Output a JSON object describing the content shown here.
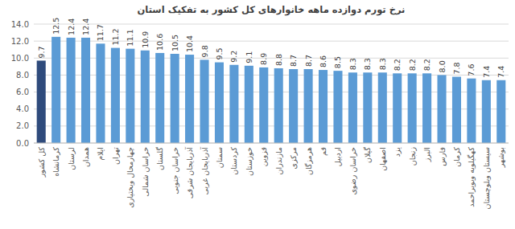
{
  "chart_data": {
    "type": "bar",
    "title": "نرخ تورم دوازده ماهه خانوارهای کل کشور به تفکیک استان",
    "categories": [
      "کل کشور",
      "کرمانشاه",
      "لرستان",
      "همدان",
      "ایلام",
      "تهران",
      "چهارمحال وبختیاری",
      "خراسان شمالی",
      "گلستان",
      "خراسان جنوبی",
      "آذربایجان شرقی",
      "آذربایجان غربی",
      "سمنان",
      "کردستان",
      "خوزستان",
      "قزوین",
      "مازندران",
      "مرکزی",
      "هرمزگان",
      "قم",
      "اردبیل",
      "خراسان رضوی",
      "گیلان",
      "اصفهان",
      "یزد",
      "زنجان",
      "البرز",
      "فارس",
      "کرمان",
      "کهگیلویه وبویراحمد",
      "سیستان وبلوچستان",
      "بوشهر"
    ],
    "values": [
      9.7,
      12.5,
      12.4,
      12.4,
      11.7,
      11.2,
      11.1,
      10.9,
      10.6,
      10.5,
      10.4,
      9.8,
      9.5,
      9.2,
      9.1,
      8.9,
      8.8,
      8.7,
      8.7,
      8.6,
      8.5,
      8.3,
      8.3,
      8.3,
      8.2,
      8.2,
      8.2,
      8.0,
      7.8,
      7.6,
      7.4,
      7.4
    ],
    "value_labels": [
      "9.7",
      "12.5",
      "12.4",
      "12.4",
      "11.7",
      "11.2",
      "11.1",
      "10.9",
      "10.6",
      "10.5",
      "10.4",
      "9.8",
      "9.5",
      "9.2",
      "9.1",
      "8.9",
      "8.8",
      "8.7",
      "8.7",
      "8.6",
      "8.5",
      "8.3",
      "8.3",
      "8.3",
      "8.2",
      "8.2",
      "8.2",
      "8.0",
      "7.8",
      "7.6",
      "7.4",
      "7.4"
    ],
    "colors": [
      "#2f4b7c",
      "#5b9bd5",
      "#5b9bd5",
      "#5b9bd5",
      "#5b9bd5",
      "#5b9bd5",
      "#5b9bd5",
      "#5b9bd5",
      "#5b9bd5",
      "#5b9bd5",
      "#5b9bd5",
      "#5b9bd5",
      "#5b9bd5",
      "#5b9bd5",
      "#5b9bd5",
      "#5b9bd5",
      "#5b9bd5",
      "#5b9bd5",
      "#5b9bd5",
      "#5b9bd5",
      "#5b9bd5",
      "#5b9bd5",
      "#5b9bd5",
      "#5b9bd5",
      "#5b9bd5",
      "#5b9bd5",
      "#5b9bd5",
      "#5b9bd5",
      "#5b9bd5",
      "#5b9bd5",
      "#5b9bd5",
      "#5b9bd5"
    ],
    "ylim": [
      0,
      14
    ],
    "yticks": [
      {
        "value": 0,
        "label": "0.0"
      },
      {
        "value": 2,
        "label": "2.0"
      },
      {
        "value": 4,
        "label": "4.0"
      },
      {
        "value": 6,
        "label": "6.0"
      },
      {
        "value": 8,
        "label": "8.0"
      },
      {
        "value": 10,
        "label": "10.0"
      },
      {
        "value": 12,
        "label": "12.0"
      },
      {
        "value": 14,
        "label": "14.0"
      }
    ],
    "grid": true,
    "data_labels": true
  }
}
